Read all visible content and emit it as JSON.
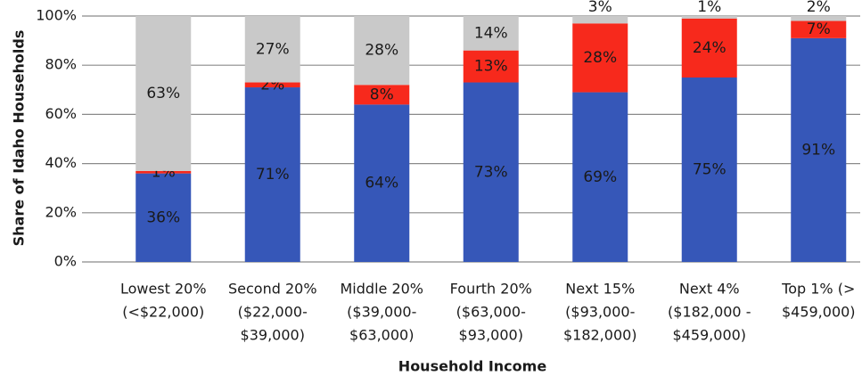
{
  "chart_data": {
    "type": "stacked_bar",
    "x_label": "Household Income",
    "y_label": "Share of Idaho Households",
    "categories": [
      [
        "Lowest 20%",
        "(<$22,000)"
      ],
      [
        "Second 20%",
        "($22,000-",
        "$39,000)"
      ],
      [
        "Middle 20%",
        "($39,000-",
        "$63,000)"
      ],
      [
        "Fourth 20%",
        "($63,000-",
        "$93,000)"
      ],
      [
        "Next 15%",
        "($93,000-",
        "$182,000)"
      ],
      [
        "Next 4%",
        "($182,000 -",
        "$459,000)"
      ],
      [
        "Top 1% (>",
        "$459,000)"
      ]
    ],
    "series": [
      {
        "color": "#3657b8",
        "values": [
          36,
          71,
          64,
          73,
          69,
          75,
          91
        ],
        "value_labels": [
          "36%",
          "71%",
          "64%",
          "73%",
          "69%",
          "75%",
          "91%"
        ]
      },
      {
        "color": "#f7291c",
        "values": [
          1,
          2,
          8,
          13,
          28,
          24,
          7
        ],
        "value_labels": [
          "1%",
          "2%",
          "8%",
          "13%",
          "28%",
          "24%",
          "7%"
        ]
      },
      {
        "color": "#c9c9c9",
        "values": [
          63,
          27,
          28,
          14,
          3,
          1,
          2
        ],
        "value_labels": [
          "63%",
          "27%",
          "28%",
          "14%",
          "3%",
          "1%",
          "2%"
        ]
      }
    ],
    "ylim": [
      0,
      100
    ],
    "yticks": [
      {
        "value": 0,
        "label": "0%"
      },
      {
        "value": 20,
        "label": "20%"
      },
      {
        "value": 40,
        "label": "40%"
      },
      {
        "value": 60,
        "label": "60%"
      },
      {
        "value": 80,
        "label": "80%"
      },
      {
        "value": 100,
        "label": "100%"
      }
    ],
    "grid": true
  }
}
